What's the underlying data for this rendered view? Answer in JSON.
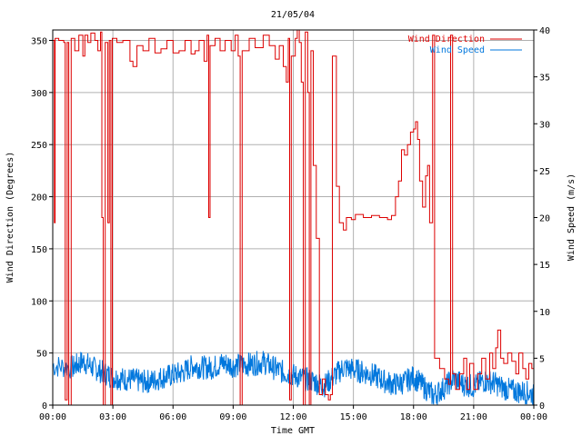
{
  "chart_data": {
    "type": "line",
    "title": "21/05/04",
    "xlabel": "Time GMT",
    "ylabel_left": "Wind Direction (Degrees)",
    "ylabel_right": "Wind Speed (m/s)",
    "x_range_hours": [
      0,
      24
    ],
    "x_ticks": [
      "00:00",
      "03:00",
      "06:00",
      "09:00",
      "12:00",
      "15:00",
      "18:00",
      "21:00",
      "00:00"
    ],
    "y_left_range": [
      0,
      360
    ],
    "y_left_ticks": [
      "0",
      "50",
      "100",
      "150",
      "200",
      "250",
      "300",
      "350"
    ],
    "y_right_range": [
      0,
      40
    ],
    "y_right_ticks": [
      "0",
      "5",
      "10",
      "15",
      "20",
      "25",
      "30",
      "35",
      "40"
    ],
    "grid": true,
    "legend_position": "top-right",
    "colors": {
      "direction": "#dd0000",
      "speed": "#0077dd",
      "grid": "#b0b0b0"
    },
    "series": [
      {
        "name": "Wind Direction",
        "axis": "left",
        "step": true,
        "points": [
          [
            0.0,
            350
          ],
          [
            0.08,
            175
          ],
          [
            0.12,
            352
          ],
          [
            0.3,
            350
          ],
          [
            0.55,
            348
          ],
          [
            0.62,
            5
          ],
          [
            0.72,
            348
          ],
          [
            0.8,
            0
          ],
          [
            0.92,
            352
          ],
          [
            1.1,
            340
          ],
          [
            1.3,
            355
          ],
          [
            1.5,
            335
          ],
          [
            1.6,
            355
          ],
          [
            1.75,
            348
          ],
          [
            1.9,
            357
          ],
          [
            2.1,
            350
          ],
          [
            2.25,
            340
          ],
          [
            2.38,
            358
          ],
          [
            2.45,
            180
          ],
          [
            2.52,
            0
          ],
          [
            2.62,
            348
          ],
          [
            2.75,
            175
          ],
          [
            2.82,
            350
          ],
          [
            2.9,
            0
          ],
          [
            2.97,
            352
          ],
          [
            3.2,
            348
          ],
          [
            3.5,
            350
          ],
          [
            3.85,
            330
          ],
          [
            4.0,
            325
          ],
          [
            4.2,
            345
          ],
          [
            4.5,
            340
          ],
          [
            4.8,
            352
          ],
          [
            5.1,
            338
          ],
          [
            5.4,
            342
          ],
          [
            5.7,
            350
          ],
          [
            6.0,
            338
          ],
          [
            6.3,
            340
          ],
          [
            6.6,
            350
          ],
          [
            6.9,
            337
          ],
          [
            7.1,
            340
          ],
          [
            7.3,
            350
          ],
          [
            7.55,
            330
          ],
          [
            7.7,
            355
          ],
          [
            7.78,
            180
          ],
          [
            7.85,
            345
          ],
          [
            8.1,
            352
          ],
          [
            8.35,
            340
          ],
          [
            8.6,
            350
          ],
          [
            8.9,
            340
          ],
          [
            9.1,
            355
          ],
          [
            9.25,
            335
          ],
          [
            9.35,
            0
          ],
          [
            9.45,
            340
          ],
          [
            9.8,
            352
          ],
          [
            10.1,
            343
          ],
          [
            10.5,
            355
          ],
          [
            10.8,
            345
          ],
          [
            11.1,
            332
          ],
          [
            11.3,
            345
          ],
          [
            11.5,
            325
          ],
          [
            11.65,
            310
          ],
          [
            11.75,
            352
          ],
          [
            11.82,
            5
          ],
          [
            11.9,
            335
          ],
          [
            12.1,
            352
          ],
          [
            12.2,
            360
          ],
          [
            12.3,
            348
          ],
          [
            12.4,
            310
          ],
          [
            12.5,
            0
          ],
          [
            12.6,
            358
          ],
          [
            12.72,
            300
          ],
          [
            12.8,
            0
          ],
          [
            12.88,
            340
          ],
          [
            13.0,
            230
          ],
          [
            13.15,
            160
          ],
          [
            13.3,
            10
          ],
          [
            13.45,
            25
          ],
          [
            13.6,
            10
          ],
          [
            13.75,
            5
          ],
          [
            13.85,
            10
          ],
          [
            13.95,
            335
          ],
          [
            14.15,
            210
          ],
          [
            14.3,
            175
          ],
          [
            14.5,
            168
          ],
          [
            14.65,
            180
          ],
          [
            14.9,
            178
          ],
          [
            15.1,
            183
          ],
          [
            15.5,
            180
          ],
          [
            15.9,
            182
          ],
          [
            16.3,
            180
          ],
          [
            16.7,
            178
          ],
          [
            16.9,
            182
          ],
          [
            17.1,
            200
          ],
          [
            17.25,
            215
          ],
          [
            17.4,
            245
          ],
          [
            17.55,
            240
          ],
          [
            17.7,
            250
          ],
          [
            17.85,
            262
          ],
          [
            18.0,
            265
          ],
          [
            18.1,
            272
          ],
          [
            18.2,
            255
          ],
          [
            18.3,
            215
          ],
          [
            18.45,
            190
          ],
          [
            18.6,
            220
          ],
          [
            18.7,
            230
          ],
          [
            18.8,
            175
          ],
          [
            18.95,
            355
          ],
          [
            19.05,
            45
          ],
          [
            19.3,
            35
          ],
          [
            19.55,
            25
          ],
          [
            19.75,
            20
          ],
          [
            19.85,
            355
          ],
          [
            19.95,
            30
          ],
          [
            20.1,
            15
          ],
          [
            20.3,
            30
          ],
          [
            20.5,
            45
          ],
          [
            20.65,
            15
          ],
          [
            20.8,
            40
          ],
          [
            21.0,
            15
          ],
          [
            21.2,
            30
          ],
          [
            21.4,
            45
          ],
          [
            21.6,
            25
          ],
          [
            21.8,
            50
          ],
          [
            21.95,
            35
          ],
          [
            22.1,
            55
          ],
          [
            22.2,
            72
          ],
          [
            22.35,
            45
          ],
          [
            22.5,
            40
          ],
          [
            22.7,
            50
          ],
          [
            22.9,
            42
          ],
          [
            23.1,
            30
          ],
          [
            23.25,
            50
          ],
          [
            23.45,
            35
          ],
          [
            23.6,
            25
          ],
          [
            23.75,
            40
          ],
          [
            23.9,
            35
          ],
          [
            24.0,
            35
          ]
        ]
      },
      {
        "name": "Wind Speed",
        "axis": "right",
        "step": false,
        "points": [
          [
            0.0,
            4.2
          ],
          [
            1.0,
            4.0
          ],
          [
            1.5,
            4.7
          ],
          [
            2.0,
            4.0
          ],
          [
            2.5,
            3.5
          ],
          [
            3.0,
            3.0
          ],
          [
            3.5,
            2.8
          ],
          [
            4.0,
            2.7
          ],
          [
            4.5,
            2.5
          ],
          [
            5.0,
            2.6
          ],
          [
            5.5,
            3.0
          ],
          [
            6.0,
            3.2
          ],
          [
            6.5,
            3.5
          ],
          [
            7.0,
            4.2
          ],
          [
            7.5,
            4.0
          ],
          [
            8.0,
            4.0
          ],
          [
            8.5,
            4.5
          ],
          [
            9.0,
            4.2
          ],
          [
            9.5,
            4.3
          ],
          [
            10.0,
            4.4
          ],
          [
            10.5,
            4.6
          ],
          [
            11.0,
            4.0
          ],
          [
            11.5,
            3.5
          ],
          [
            12.0,
            3.2
          ],
          [
            12.5,
            2.8
          ],
          [
            13.0,
            2.6
          ],
          [
            13.5,
            2.0
          ],
          [
            14.0,
            3.0
          ],
          [
            14.5,
            4.0
          ],
          [
            15.0,
            3.8
          ],
          [
            15.5,
            3.5
          ],
          [
            16.0,
            3.2
          ],
          [
            16.5,
            2.6
          ],
          [
            17.0,
            2.2
          ],
          [
            17.5,
            2.4
          ],
          [
            18.0,
            3.0
          ],
          [
            18.5,
            2.0
          ],
          [
            19.0,
            1.0
          ],
          [
            19.5,
            1.8
          ],
          [
            20.0,
            2.8
          ],
          [
            20.5,
            2.2
          ],
          [
            21.0,
            2.0
          ],
          [
            21.5,
            2.6
          ],
          [
            22.0,
            2.4
          ],
          [
            22.5,
            1.8
          ],
          [
            23.0,
            1.5
          ],
          [
            23.5,
            1.4
          ],
          [
            24.0,
            1.2
          ]
        ]
      }
    ]
  }
}
